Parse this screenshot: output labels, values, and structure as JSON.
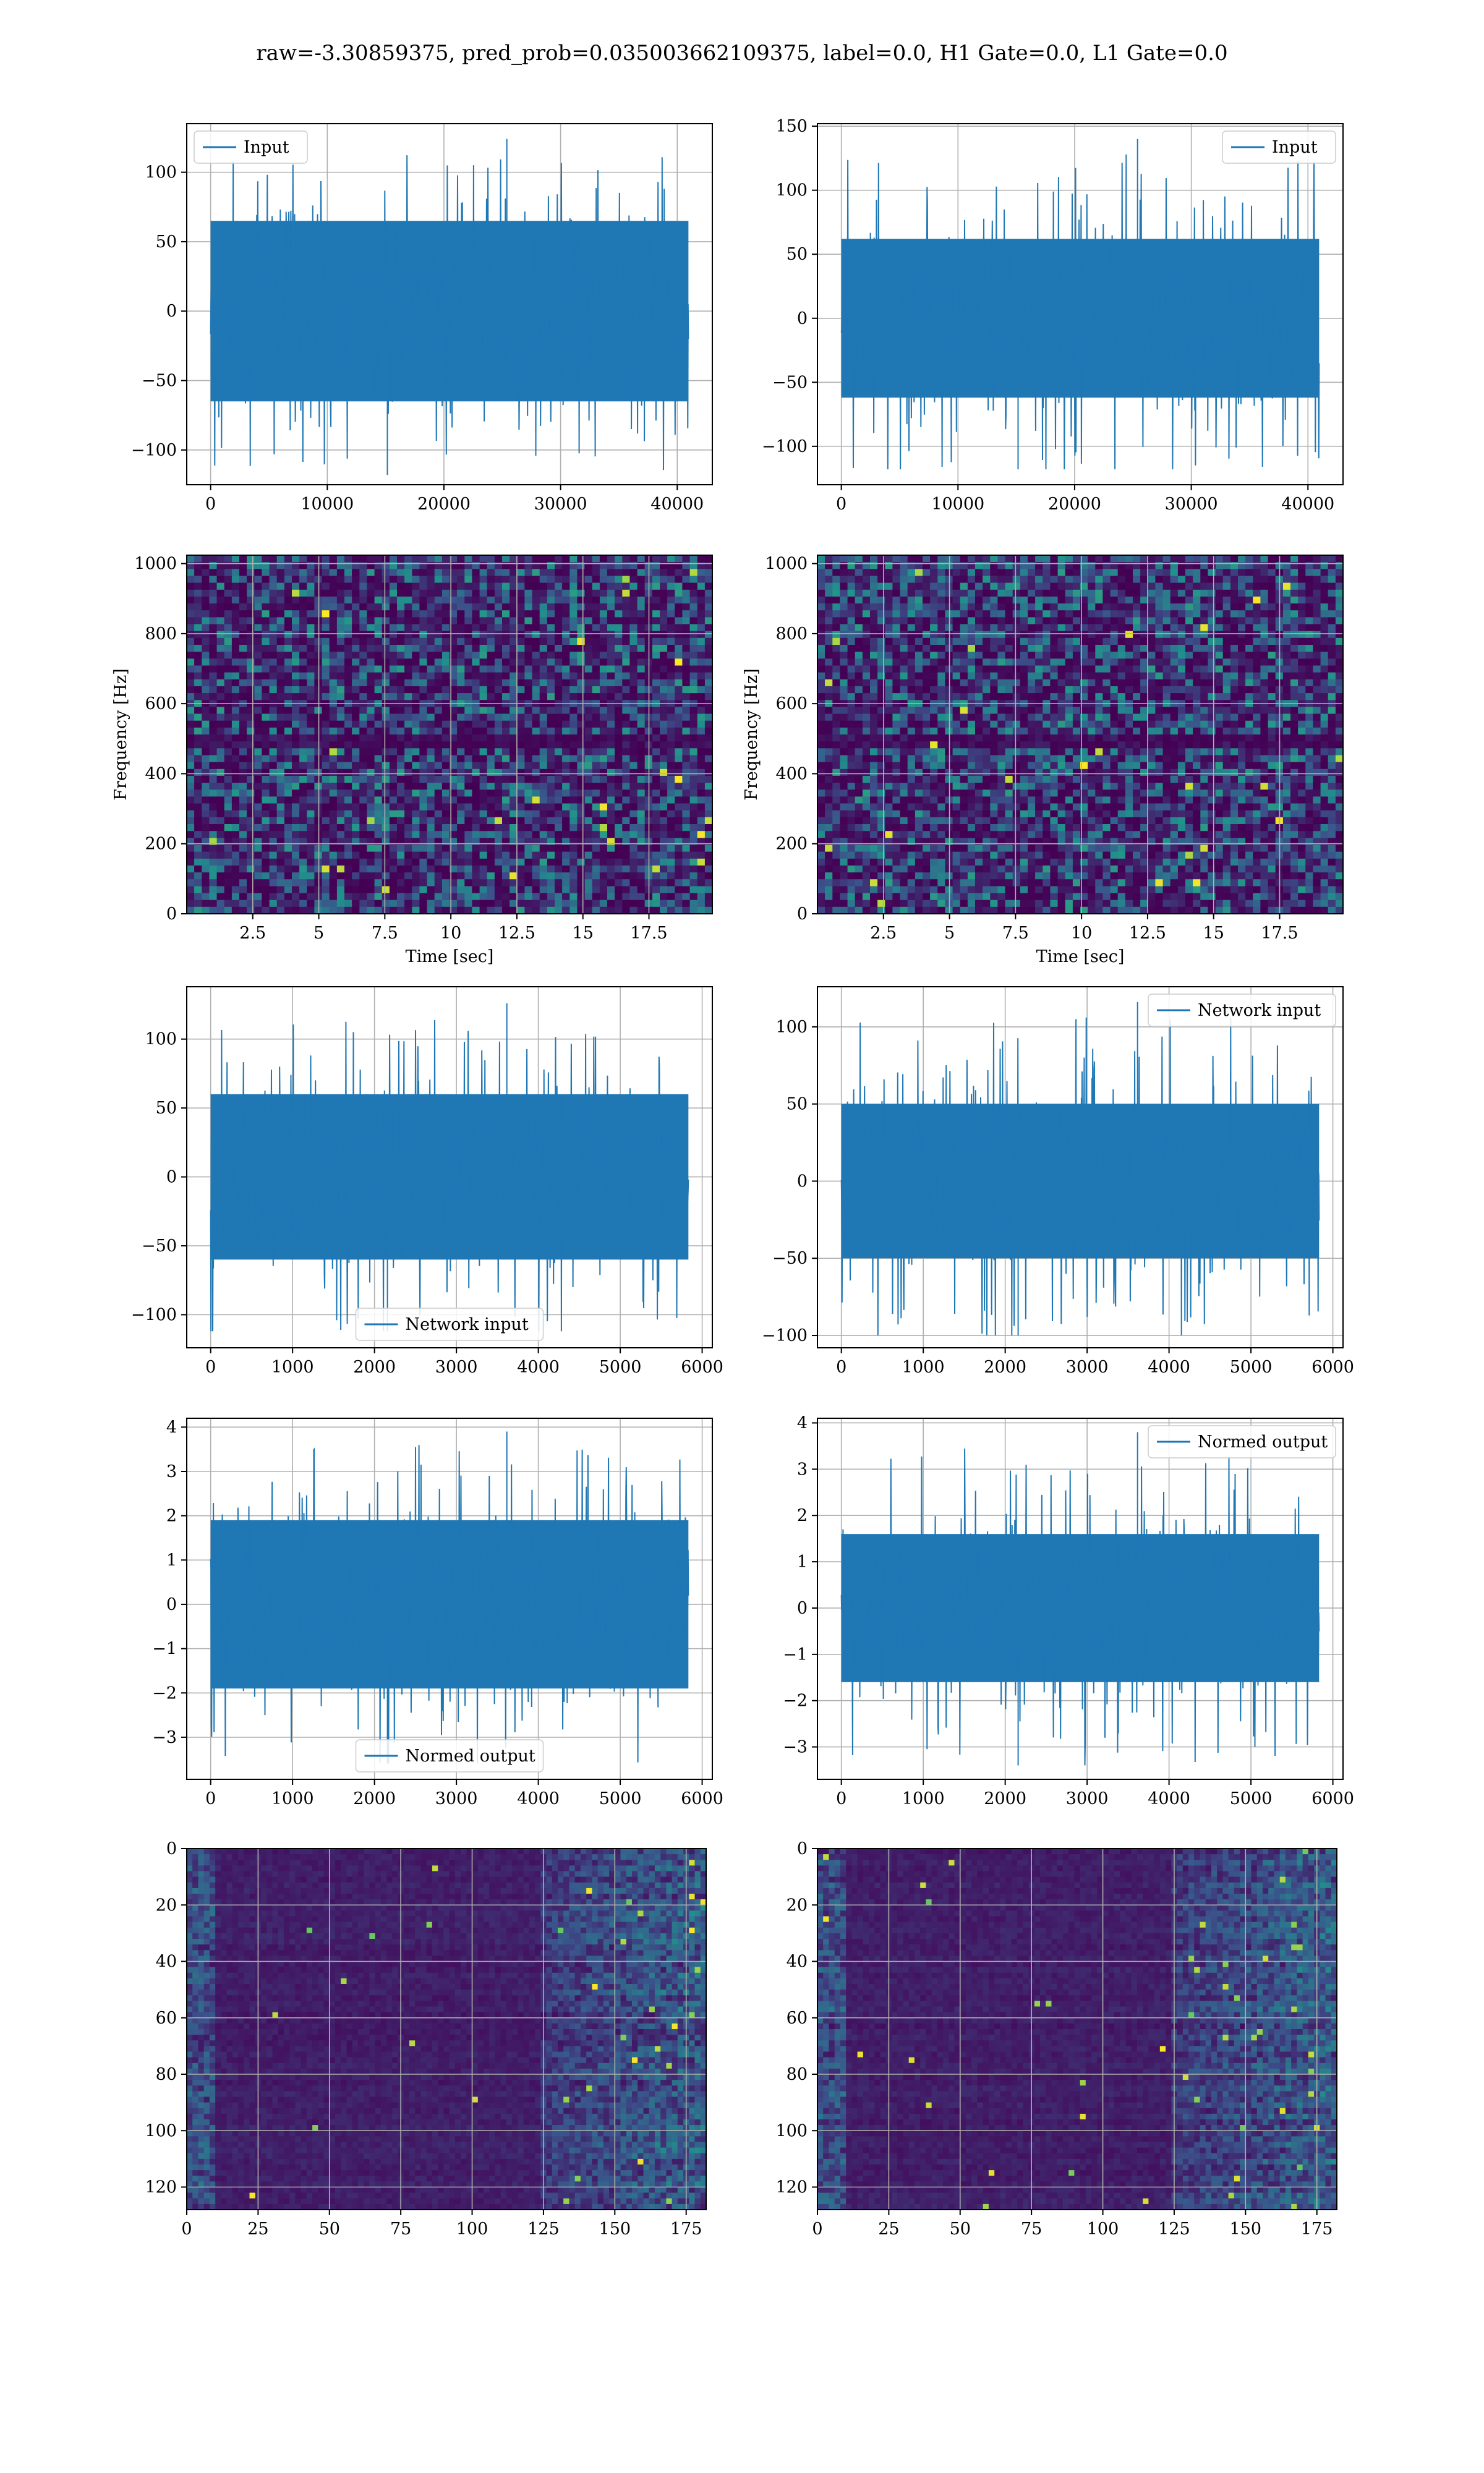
{
  "figure": {
    "title": "raw=-3.30859375, pred_prob=0.035003662109375, label=0.0, H1 Gate=0.0, L1 Gate=0.0"
  },
  "colors": {
    "series": "#1f77b4",
    "grid": "#b0b0b0",
    "spec_bg": "#3b1f5f",
    "spec_mid": "#31688e",
    "spec_hi": "#35b779",
    "spec_peak": "#fde725"
  },
  "chart_data": [
    {
      "id": "input-h1",
      "type": "line",
      "legend": "Input",
      "legend_loc": "upper left",
      "x": [
        0,
        40960
      ],
      "xlim": [
        -2048,
        43008
      ],
      "ylim": [
        -125,
        135
      ],
      "xticks": [
        0,
        10000,
        20000,
        30000,
        40000
      ],
      "yticks": [
        -100,
        -50,
        0,
        50,
        100
      ],
      "envelope": {
        "core": 65,
        "peak_max": 124,
        "peak_min": -118
      },
      "grid": true
    },
    {
      "id": "input-l1",
      "type": "line",
      "legend": "Input",
      "legend_loc": "upper right",
      "x": [
        0,
        40960
      ],
      "xlim": [
        -2048,
        43008
      ],
      "ylim": [
        -130,
        152
      ],
      "xticks": [
        0,
        10000,
        20000,
        30000,
        40000
      ],
      "yticks": [
        -100,
        -50,
        0,
        50,
        100,
        150
      ],
      "envelope": {
        "core": 62,
        "peak_max": 140,
        "peak_min": -118
      },
      "grid": true
    },
    {
      "id": "spectrogram-h1",
      "type": "heatmap",
      "xlabel": "Time [sec]",
      "ylabel": "Frequency [Hz]",
      "xlim": [
        0,
        19.9
      ],
      "ylim": [
        0,
        1024
      ],
      "xticks": [
        2.5,
        5.0,
        7.5,
        10.0,
        12.5,
        15.0,
        17.5
      ],
      "yticks": [
        0,
        200,
        400,
        600,
        800,
        1000
      ],
      "dark_band_hz": [
        480,
        520
      ],
      "grid": true
    },
    {
      "id": "spectrogram-l1",
      "type": "heatmap",
      "xlabel": "Time [sec]",
      "ylabel": "Frequency [Hz]",
      "xlim": [
        0,
        19.9
      ],
      "ylim": [
        0,
        1024
      ],
      "xticks": [
        2.5,
        5.0,
        7.5,
        10.0,
        12.5,
        15.0,
        17.5
      ],
      "yticks": [
        0,
        200,
        400,
        600,
        800,
        1000
      ],
      "dark_band_hz": [
        480,
        520
      ],
      "grid": true
    },
    {
      "id": "network-input-h1",
      "type": "line",
      "legend": "Network input",
      "legend_loc": "lower center",
      "x": [
        0,
        5832
      ],
      "xlim": [
        -292,
        6124
      ],
      "ylim": [
        -124,
        138
      ],
      "xticks": [
        0,
        1000,
        2000,
        3000,
        4000,
        5000,
        6000
      ],
      "yticks": [
        -100,
        -50,
        0,
        50,
        100
      ],
      "envelope": {
        "core": 60,
        "peak_max": 126,
        "peak_min": -112
      },
      "grid": true
    },
    {
      "id": "network-input-l1",
      "type": "line",
      "legend": "Network input",
      "legend_loc": "upper right",
      "x": [
        0,
        5832
      ],
      "xlim": [
        -292,
        6124
      ],
      "ylim": [
        -108,
        126
      ],
      "xticks": [
        0,
        1000,
        2000,
        3000,
        4000,
        5000,
        6000
      ],
      "yticks": [
        -100,
        -50,
        0,
        50,
        100
      ],
      "envelope": {
        "core": 50,
        "peak_max": 116,
        "peak_min": -100
      },
      "grid": true
    },
    {
      "id": "normed-output-h1",
      "type": "line",
      "legend": "Normed output",
      "legend_loc": "lower center",
      "x": [
        0,
        5832
      ],
      "xlim": [
        -292,
        6124
      ],
      "ylim": [
        -3.95,
        4.2
      ],
      "xticks": [
        0,
        1000,
        2000,
        3000,
        4000,
        5000,
        6000
      ],
      "yticks": [
        -3,
        -2,
        -1,
        0,
        1,
        2,
        3,
        4
      ],
      "envelope": {
        "core": 1.9,
        "peak_max": 3.9,
        "peak_min": -3.6
      },
      "grid": true
    },
    {
      "id": "normed-output-l1",
      "type": "line",
      "legend": "Normed output",
      "legend_loc": "upper right",
      "x": [
        0,
        5832
      ],
      "xlim": [
        -292,
        6124
      ],
      "ylim": [
        -3.7,
        4.1
      ],
      "xticks": [
        0,
        1000,
        2000,
        3000,
        4000,
        5000,
        6000
      ],
      "yticks": [
        -3,
        -2,
        -1,
        0,
        1,
        2,
        3,
        4
      ],
      "envelope": {
        "core": 1.6,
        "peak_max": 3.8,
        "peak_min": -3.4
      },
      "grid": true
    },
    {
      "id": "feature-map-h1",
      "type": "heatmap",
      "xlim": [
        0,
        182
      ],
      "ylim": [
        128,
        0
      ],
      "xticks": [
        0,
        25,
        50,
        75,
        100,
        125,
        150,
        175
      ],
      "yticks": [
        0,
        20,
        40,
        60,
        80,
        100,
        120
      ],
      "grid": true
    },
    {
      "id": "feature-map-l1",
      "type": "heatmap",
      "xlim": [
        0,
        182
      ],
      "ylim": [
        128,
        0
      ],
      "xticks": [
        0,
        25,
        50,
        75,
        100,
        125,
        150,
        175
      ],
      "yticks": [
        0,
        20,
        40,
        60,
        80,
        100,
        120
      ],
      "grid": true
    }
  ]
}
